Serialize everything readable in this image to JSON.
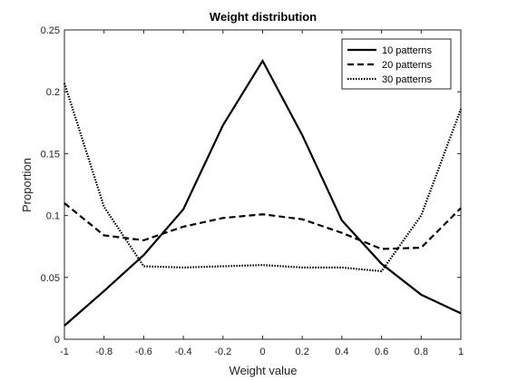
{
  "chart_data": {
    "type": "line",
    "title": "Weight distribution",
    "xlabel": "Weight value",
    "ylabel": "Proportion",
    "xlim": [
      -1,
      1
    ],
    "ylim": [
      0,
      0.25
    ],
    "xticks": [
      -1,
      -0.8,
      -0.6,
      -0.4,
      -0.2,
      0,
      0.2,
      0.4,
      0.6,
      0.8,
      1
    ],
    "xtick_labels": [
      "-1",
      "-0.8",
      "-0.6",
      "-0.4",
      "-0.2",
      "0",
      "0.2",
      "0.4",
      "0.6",
      "0.8",
      "1"
    ],
    "yticks": [
      0,
      0.05,
      0.1,
      0.15,
      0.2,
      0.25
    ],
    "ytick_labels": [
      "0",
      "0.05",
      "0.1",
      "0.15",
      "0.2",
      "0.25"
    ],
    "grid": false,
    "legend_position": "top-right",
    "series": [
      {
        "name": "10 patterns",
        "style": "solid",
        "color": "#000000",
        "x": [
          -1,
          -0.8,
          -0.6,
          -0.4,
          -0.2,
          0,
          0.2,
          0.4,
          0.6,
          0.8,
          1
        ],
        "values": [
          0.011,
          0.039,
          0.068,
          0.105,
          0.173,
          0.225,
          0.165,
          0.096,
          0.061,
          0.036,
          0.021
        ]
      },
      {
        "name": "20 patterns",
        "style": "dashed",
        "color": "#000000",
        "x": [
          -1,
          -0.8,
          -0.6,
          -0.4,
          -0.2,
          0,
          0.2,
          0.4,
          0.6,
          0.8,
          1
        ],
        "values": [
          0.11,
          0.084,
          0.08,
          0.091,
          0.098,
          0.101,
          0.097,
          0.086,
          0.073,
          0.074,
          0.106
        ]
      },
      {
        "name": "30 patterns",
        "style": "dotted",
        "color": "#000000",
        "x": [
          -1,
          -0.8,
          -0.6,
          -0.4,
          -0.2,
          0,
          0.2,
          0.4,
          0.6,
          0.8,
          1
        ],
        "values": [
          0.207,
          0.107,
          0.059,
          0.058,
          0.059,
          0.06,
          0.058,
          0.058,
          0.055,
          0.1,
          0.186
        ]
      }
    ]
  }
}
